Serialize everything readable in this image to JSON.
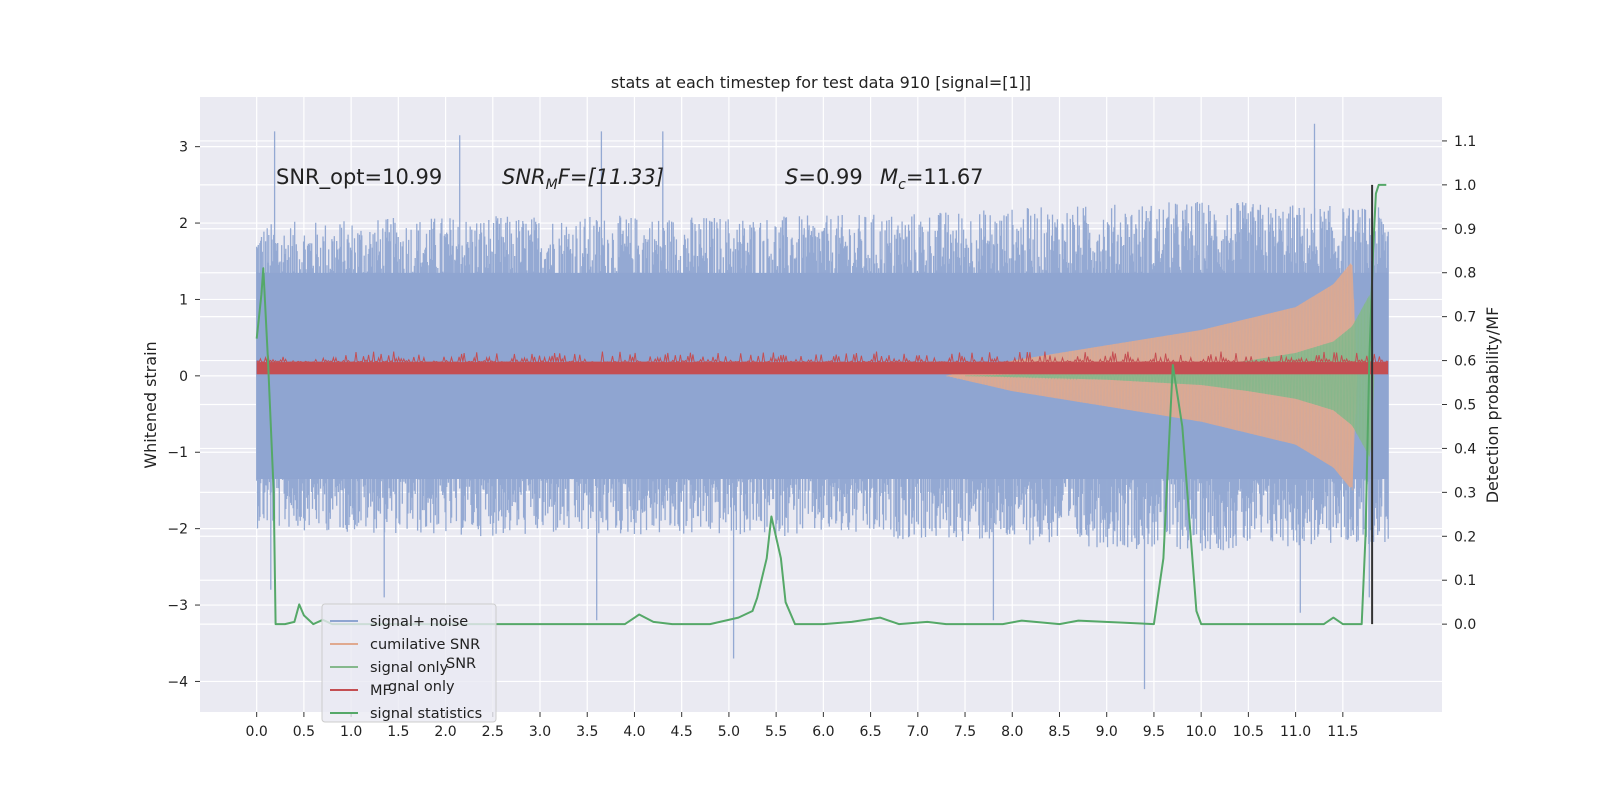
{
  "chart_data": {
    "type": "line",
    "title": "stats at each timestep for test data 910 [signal=[1]]",
    "ylabel": "Whitened strain",
    "ylabel_right": "Detection probability/MF",
    "xlim": [
      -0.6,
      12.55
    ],
    "ylim": [
      -4.4,
      3.65
    ],
    "ylim_right": [
      -0.2,
      1.2
    ],
    "x_ticks": [
      0.0,
      0.5,
      1.0,
      1.5,
      2.0,
      2.5,
      3.0,
      3.5,
      4.0,
      4.5,
      5.0,
      5.5,
      6.0,
      6.5,
      7.0,
      7.5,
      8.0,
      8.5,
      9.0,
      9.5,
      10.0,
      10.5,
      11.0,
      11.5
    ],
    "x_tick_labels": [
      "0.0",
      "0.5",
      "1.0",
      "1.5",
      "2.0",
      "2.5",
      "3.0",
      "3.5",
      "4.0",
      "4.5",
      "5.0",
      "5.5",
      "6.0",
      "6.5",
      "7.0",
      "7.5",
      "8.0",
      "8.5",
      "9.0",
      "9.5",
      "10.0",
      "10.5",
      "11.0",
      "11.5"
    ],
    "y_ticks": [
      3,
      2,
      1,
      0,
      -1,
      -2,
      -3,
      -4
    ],
    "y_tick_labels": [
      "3",
      "2",
      "1",
      "0",
      "−1",
      "−2",
      "−3",
      "−4"
    ],
    "y_right_ticks": [
      1.1,
      1.0,
      0.9,
      0.8,
      0.7,
      0.6,
      0.5,
      0.4,
      0.3,
      0.2,
      0.1,
      0.0
    ],
    "y_right_tick_labels": [
      "1.1",
      "1.0",
      "0.9",
      "0.8",
      "0.7",
      "0.6",
      "0.5",
      "0.4",
      "0.3",
      "0.2",
      "0.1",
      "0.0"
    ],
    "grid": true,
    "annotations": {
      "snr_opt": "SNR_opt=10.99",
      "snr_mf_main": "SNR",
      "snr_mf_sub": "M",
      "snr_mf_rest": "F=[11.33]",
      "s_main": "S",
      "s_rest": "=0.99",
      "mc_main": "M",
      "mc_sub": "c",
      "mc_rest": "=11.67"
    },
    "legend_position": "lower-left",
    "legend": [
      {
        "label": "signal+ noise",
        "color": "#8fa5d1"
      },
      {
        "label": "cumilative SNR",
        "color": "#e0a98f"
      },
      {
        "label": "signal only",
        "color": "#85b88c"
      },
      {
        "label": "MF",
        "color": "#c44e52"
      },
      {
        "label": "signal statistics",
        "color": "#55a868"
      }
    ],
    "legend_ghost": {
      "snr": "SNR",
      "signal_only": "gnal only"
    },
    "series": [
      {
        "name": "signal+ noise",
        "axis": "left",
        "style": "noise",
        "color": "#8fa5d1",
        "x_range": [
          0.0,
          11.98
        ],
        "envelope": {
          "x": [
            0.0,
            2.0,
            4.0,
            6.0,
            8.0,
            10.0,
            11.98
          ],
          "upper": [
            2.0,
            2.1,
            2.1,
            2.1,
            2.2,
            2.3,
            2.2
          ],
          "lower": [
            -2.0,
            -2.1,
            -2.1,
            -2.1,
            -2.2,
            -2.3,
            -2.2
          ]
        },
        "peaks": [
          [
            0.19,
            3.2
          ],
          [
            2.15,
            3.15
          ],
          [
            3.65,
            3.2
          ],
          [
            4.3,
            3.2
          ],
          [
            11.2,
            3.3
          ],
          [
            0.15,
            -2.8
          ],
          [
            1.35,
            -2.9
          ],
          [
            3.6,
            -3.2
          ],
          [
            5.05,
            -3.7
          ],
          [
            7.8,
            -3.2
          ],
          [
            9.4,
            -4.1
          ],
          [
            11.05,
            -3.1
          ],
          [
            11.78,
            -2.9
          ]
        ]
      },
      {
        "name": "cumilative SNR",
        "axis": "left",
        "style": "chirp",
        "color": "#e0a98f",
        "x": [
          7.3,
          8.0,
          9.0,
          10.0,
          10.5,
          11.0,
          11.4,
          11.6,
          11.65
        ],
        "amplitude": [
          0.0,
          0.2,
          0.4,
          0.6,
          0.75,
          0.9,
          1.2,
          1.5,
          0.0
        ]
      },
      {
        "name": "signal only",
        "axis": "left",
        "style": "chirp",
        "color": "#85b88c",
        "x": [
          7.5,
          9.0,
          10.0,
          10.5,
          11.0,
          11.4,
          11.6,
          11.8,
          11.83
        ],
        "amplitude": [
          0.0,
          0.05,
          0.12,
          0.2,
          0.3,
          0.45,
          0.65,
          1.1,
          0.0
        ]
      },
      {
        "name": "MF",
        "axis": "left",
        "style": "band",
        "color": "#c44e52",
        "x_range": [
          0.0,
          11.98
        ],
        "band": [
          0.02,
          0.18
        ],
        "peak": 0.32
      },
      {
        "name": "signal statistics",
        "axis": "right",
        "style": "line",
        "color": "#55a868",
        "x": [
          0.0,
          0.05,
          0.07,
          0.12,
          0.18,
          0.2,
          0.3,
          0.4,
          0.45,
          0.5,
          0.6,
          0.7,
          0.8,
          1.0,
          2.0,
          3.0,
          3.9,
          4.05,
          4.2,
          4.4,
          4.8,
          5.1,
          5.25,
          5.3,
          5.4,
          5.45,
          5.55,
          5.6,
          5.7,
          6.0,
          6.3,
          6.6,
          6.8,
          7.1,
          7.3,
          7.9,
          8.1,
          8.5,
          8.7,
          9.5,
          9.6,
          9.7,
          9.8,
          9.95,
          10.0,
          10.5,
          11.3,
          11.4,
          11.5,
          11.7,
          11.74,
          11.78,
          11.82,
          11.85,
          11.88,
          11.96
        ],
        "y": [
          0.65,
          0.75,
          0.81,
          0.6,
          0.3,
          0.0,
          0.0,
          0.005,
          0.045,
          0.02,
          0.0,
          0.01,
          0.0,
          0.0,
          0.0,
          0.0,
          0.0,
          0.022,
          0.005,
          0.0,
          0.0,
          0.015,
          0.03,
          0.06,
          0.15,
          0.245,
          0.15,
          0.05,
          0.0,
          0.0,
          0.005,
          0.015,
          0.0,
          0.005,
          0.0,
          0.0,
          0.008,
          0.0,
          0.008,
          0.0,
          0.15,
          0.59,
          0.45,
          0.03,
          0.0,
          0.0,
          0.0,
          0.015,
          0.0,
          0.0,
          0.2,
          0.6,
          0.85,
          0.98,
          1.0,
          1.0
        ]
      },
      {
        "name": "",
        "axis": "right",
        "style": "vline",
        "color": "#333333",
        "x": 11.81,
        "y": [
          0.0,
          1.0
        ]
      }
    ]
  }
}
